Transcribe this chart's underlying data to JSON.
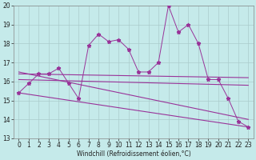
{
  "xlabel": "Windchill (Refroidissement éolien,°C)",
  "bg_color": "#c5eaea",
  "line_color": "#993399",
  "grid_color": "#aacccc",
  "xlim": [
    -0.5,
    23.5
  ],
  "ylim": [
    13,
    20
  ],
  "yticks": [
    13,
    14,
    15,
    16,
    17,
    18,
    19,
    20
  ],
  "xticks": [
    0,
    1,
    2,
    3,
    4,
    5,
    6,
    7,
    8,
    9,
    10,
    11,
    12,
    13,
    14,
    15,
    16,
    17,
    18,
    19,
    20,
    21,
    22,
    23
  ],
  "series1_x": [
    0,
    1,
    2,
    3,
    4,
    5,
    6,
    7,
    8,
    9,
    10,
    11,
    12,
    13,
    14,
    15,
    16,
    17,
    18,
    19,
    20,
    21,
    22,
    23
  ],
  "series1_y": [
    15.4,
    15.9,
    16.4,
    16.4,
    16.7,
    15.9,
    15.1,
    17.9,
    18.5,
    18.1,
    18.2,
    17.7,
    16.5,
    16.5,
    17.0,
    20.0,
    18.6,
    19.0,
    18.0,
    16.1,
    16.1,
    15.1,
    13.9,
    13.6
  ],
  "series2_x": [
    0,
    23
  ],
  "series2_y": [
    16.4,
    16.2
  ],
  "series3_x": [
    0,
    23
  ],
  "series3_y": [
    16.1,
    15.8
  ],
  "series4_x": [
    0,
    23
  ],
  "series4_y": [
    15.4,
    13.6
  ],
  "series5_x": [
    0,
    23
  ],
  "series5_y": [
    16.5,
    14.0
  ],
  "xlabel_fontsize": 5.5,
  "tick_fontsize": 5.5
}
